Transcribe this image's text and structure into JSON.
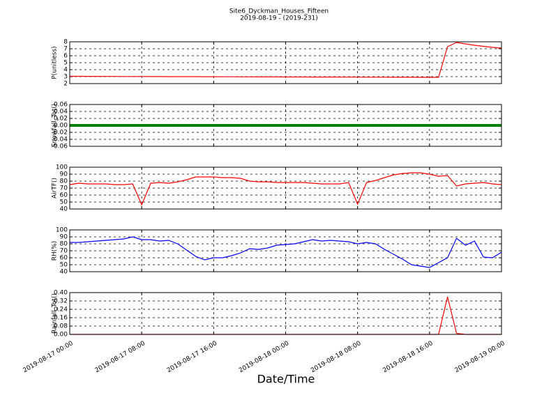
{
  "chart_data": [
    {
      "type": "line",
      "title": "Site6_Dyckman_Houses_Fifteen",
      "subtitle": "2019-08-19 - (2019-231)",
      "ylabel": "P(unitless)",
      "color": "#ff0000",
      "grid": true,
      "ylim": [
        2,
        8
      ],
      "yticks": [
        2,
        3,
        4,
        5,
        6,
        7,
        8
      ],
      "x": [
        "2019-08-17 00:00",
        "2019-08-17 01:00",
        "2019-08-17 02:00",
        "2019-08-17 03:00",
        "2019-08-17 04:00",
        "2019-08-17 05:00",
        "2019-08-17 06:00",
        "2019-08-17 07:00",
        "2019-08-17 08:00",
        "2019-08-17 09:00",
        "2019-08-17 10:00",
        "2019-08-17 11:00",
        "2019-08-17 12:00",
        "2019-08-17 13:00",
        "2019-08-17 14:00",
        "2019-08-17 15:00",
        "2019-08-17 16:00",
        "2019-08-17 17:00",
        "2019-08-17 18:00",
        "2019-08-17 19:00",
        "2019-08-17 20:00",
        "2019-08-17 21:00",
        "2019-08-17 22:00",
        "2019-08-17 23:00",
        "2019-08-18 00:00",
        "2019-08-18 01:00",
        "2019-08-18 02:00",
        "2019-08-18 03:00",
        "2019-08-18 04:00",
        "2019-08-18 05:00",
        "2019-08-18 06:00",
        "2019-08-18 07:00",
        "2019-08-18 08:00",
        "2019-08-18 09:00",
        "2019-08-18 10:00",
        "2019-08-18 11:00",
        "2019-08-18 12:00",
        "2019-08-18 13:00",
        "2019-08-18 14:00",
        "2019-08-18 15:00",
        "2019-08-18 16:00",
        "2019-08-18 17:00",
        "2019-08-18 18:00",
        "2019-08-18 19:00",
        "2019-08-18 20:00",
        "2019-08-18 21:00",
        "2019-08-18 22:00",
        "2019-08-18 23:00",
        "2019-08-19 00:00"
      ],
      "values": [
        3.05,
        3.05,
        3.04,
        3.04,
        3.03,
        3.03,
        3.02,
        3.02,
        3.02,
        3.01,
        3.01,
        3.0,
        3.0,
        3.0,
        3.0,
        2.99,
        2.99,
        2.98,
        2.98,
        2.97,
        2.97,
        2.96,
        2.96,
        2.96,
        2.95,
        2.95,
        2.95,
        2.94,
        2.94,
        2.94,
        2.93,
        2.93,
        2.93,
        2.92,
        2.92,
        2.92,
        2.91,
        2.91,
        2.91,
        2.9,
        2.9,
        2.9,
        7.3,
        7.9,
        7.7,
        7.5,
        7.35,
        7.2,
        7.1
      ]
    },
    {
      "type": "line",
      "ylabel": "Snowfall_Tot()",
      "color": "#008000",
      "grid": true,
      "ylim": [
        -0.06,
        0.06
      ],
      "yticks": [
        -0.06,
        -0.04,
        -0.02,
        {
          "value": 0,
          "label": "0.00"
        },
        0.02,
        0.04,
        0.06
      ],
      "x": [
        "2019-08-17 00:00",
        "2019-08-17 01:00",
        "2019-08-17 02:00",
        "2019-08-17 03:00",
        "2019-08-17 04:00",
        "2019-08-17 05:00",
        "2019-08-17 06:00",
        "2019-08-17 07:00",
        "2019-08-17 08:00",
        "2019-08-17 09:00",
        "2019-08-17 10:00",
        "2019-08-17 11:00",
        "2019-08-17 12:00",
        "2019-08-17 13:00",
        "2019-08-17 14:00",
        "2019-08-17 15:00",
        "2019-08-17 16:00",
        "2019-08-17 17:00",
        "2019-08-17 18:00",
        "2019-08-17 19:00",
        "2019-08-17 20:00",
        "2019-08-17 21:00",
        "2019-08-17 22:00",
        "2019-08-17 23:00",
        "2019-08-18 00:00",
        "2019-08-18 01:00",
        "2019-08-18 02:00",
        "2019-08-18 03:00",
        "2019-08-18 04:00",
        "2019-08-18 05:00",
        "2019-08-18 06:00",
        "2019-08-18 07:00",
        "2019-08-18 08:00",
        "2019-08-18 09:00",
        "2019-08-18 10:00",
        "2019-08-18 11:00",
        "2019-08-18 12:00",
        "2019-08-18 13:00",
        "2019-08-18 14:00",
        "2019-08-18 15:00",
        "2019-08-18 16:00",
        "2019-08-18 17:00",
        "2019-08-18 18:00",
        "2019-08-18 19:00",
        "2019-08-18 20:00",
        "2019-08-18 21:00",
        "2019-08-18 22:00",
        "2019-08-18 23:00",
        "2019-08-19 00:00"
      ],
      "values": [
        0,
        0,
        0,
        0,
        0,
        0,
        0,
        0,
        0,
        0,
        0,
        0,
        0,
        0,
        0,
        0,
        0,
        0,
        0,
        0,
        0,
        0,
        0,
        0,
        0,
        0,
        0,
        0,
        0,
        0,
        0,
        0,
        0,
        0,
        0,
        0,
        0,
        0,
        0,
        0,
        0,
        0,
        0,
        0,
        0,
        0,
        0,
        0,
        0
      ]
    },
    {
      "type": "line",
      "ylabel": "AirTF()",
      "color": "#ff0000",
      "grid": true,
      "ylim": [
        40,
        100
      ],
      "yticks": [
        40,
        50,
        60,
        70,
        80,
        90,
        100
      ],
      "x": [
        "2019-08-17 00:00",
        "2019-08-17 01:00",
        "2019-08-17 02:00",
        "2019-08-17 03:00",
        "2019-08-17 04:00",
        "2019-08-17 05:00",
        "2019-08-17 06:00",
        "2019-08-17 07:00",
        "2019-08-17 08:00",
        "2019-08-17 09:00",
        "2019-08-17 10:00",
        "2019-08-17 11:00",
        "2019-08-17 12:00",
        "2019-08-17 13:00",
        "2019-08-17 14:00",
        "2019-08-17 15:00",
        "2019-08-17 16:00",
        "2019-08-17 17:00",
        "2019-08-17 18:00",
        "2019-08-17 19:00",
        "2019-08-17 20:00",
        "2019-08-17 21:00",
        "2019-08-17 22:00",
        "2019-08-17 23:00",
        "2019-08-18 00:00",
        "2019-08-18 01:00",
        "2019-08-18 02:00",
        "2019-08-18 03:00",
        "2019-08-18 04:00",
        "2019-08-18 05:00",
        "2019-08-18 06:00",
        "2019-08-18 07:00",
        "2019-08-18 08:00",
        "2019-08-18 09:00",
        "2019-08-18 10:00",
        "2019-08-18 11:00",
        "2019-08-18 12:00",
        "2019-08-18 13:00",
        "2019-08-18 14:00",
        "2019-08-18 15:00",
        "2019-08-18 16:00",
        "2019-08-18 17:00",
        "2019-08-18 18:00",
        "2019-08-18 19:00",
        "2019-08-18 20:00",
        "2019-08-18 21:00",
        "2019-08-18 22:00",
        "2019-08-18 23:00",
        "2019-08-19 00:00"
      ],
      "values": [
        75,
        77,
        76,
        76,
        76,
        75,
        75,
        76,
        46,
        77,
        78,
        77,
        79,
        82,
        86,
        86,
        86,
        85,
        85,
        84,
        80,
        79,
        79,
        78,
        78,
        78,
        78,
        77,
        76,
        76,
        76,
        78,
        47,
        78,
        81,
        85,
        89,
        91,
        92,
        92,
        90,
        87,
        88,
        73,
        76,
        77,
        78,
        76,
        75
      ]
    },
    {
      "type": "line",
      "ylabel": "RH(%)",
      "color": "#0000ff",
      "grid": true,
      "ylim": [
        40,
        100
      ],
      "yticks": [
        40,
        50,
        60,
        70,
        80,
        90,
        100
      ],
      "x": [
        "2019-08-17 00:00",
        "2019-08-17 01:00",
        "2019-08-17 02:00",
        "2019-08-17 03:00",
        "2019-08-17 04:00",
        "2019-08-17 05:00",
        "2019-08-17 06:00",
        "2019-08-17 07:00",
        "2019-08-17 08:00",
        "2019-08-17 09:00",
        "2019-08-17 10:00",
        "2019-08-17 11:00",
        "2019-08-17 12:00",
        "2019-08-17 13:00",
        "2019-08-17 14:00",
        "2019-08-17 15:00",
        "2019-08-17 16:00",
        "2019-08-17 17:00",
        "2019-08-17 18:00",
        "2019-08-17 19:00",
        "2019-08-17 20:00",
        "2019-08-17 21:00",
        "2019-08-17 22:00",
        "2019-08-17 23:00",
        "2019-08-18 00:00",
        "2019-08-18 01:00",
        "2019-08-18 02:00",
        "2019-08-18 03:00",
        "2019-08-18 04:00",
        "2019-08-18 05:00",
        "2019-08-18 06:00",
        "2019-08-18 07:00",
        "2019-08-18 08:00",
        "2019-08-18 09:00",
        "2019-08-18 10:00",
        "2019-08-18 11:00",
        "2019-08-18 12:00",
        "2019-08-18 13:00",
        "2019-08-18 14:00",
        "2019-08-18 15:00",
        "2019-08-18 16:00",
        "2019-08-18 17:00",
        "2019-08-18 18:00",
        "2019-08-18 19:00",
        "2019-08-18 20:00",
        "2019-08-18 21:00",
        "2019-08-18 22:00",
        "2019-08-18 23:00",
        "2019-08-19 00:00"
      ],
      "values": [
        82,
        82,
        83,
        84,
        85,
        86,
        87,
        90,
        86,
        86,
        84,
        85,
        80,
        71,
        62,
        57,
        60,
        60,
        63,
        67,
        73,
        72,
        74,
        78,
        79,
        80,
        83,
        86,
        84,
        85,
        84,
        83,
        80,
        82,
        80,
        72,
        65,
        58,
        50,
        48,
        46,
        53,
        60,
        88,
        78,
        84,
        61,
        60,
        68
      ]
    },
    {
      "type": "line",
      "ylabel": "Rainfall_Tot()",
      "xlabel": "Date/Time",
      "color": "#ff0000",
      "grid": true,
      "ylim": [
        0,
        0.4
      ],
      "yticks": [
        {
          "value": 0,
          "label": "0.00"
        },
        0.08,
        0.16,
        0.24,
        0.32,
        {
          "value": 0.4,
          "label": "0.40"
        }
      ],
      "xlim": [
        "2019-08-17 00:00",
        "2019-08-19 00:00"
      ],
      "xticks": [
        "2019-08-17 00:00",
        "2019-08-17 08:00",
        "2019-08-17 16:00",
        "2019-08-18 00:00",
        "2019-08-18 08:00",
        "2019-08-18 16:00",
        "2019-08-19 00:00"
      ],
      "x": [
        "2019-08-17 00:00",
        "2019-08-17 01:00",
        "2019-08-17 02:00",
        "2019-08-17 03:00",
        "2019-08-17 04:00",
        "2019-08-17 05:00",
        "2019-08-17 06:00",
        "2019-08-17 07:00",
        "2019-08-17 08:00",
        "2019-08-17 09:00",
        "2019-08-17 10:00",
        "2019-08-17 11:00",
        "2019-08-17 12:00",
        "2019-08-17 13:00",
        "2019-08-17 14:00",
        "2019-08-17 15:00",
        "2019-08-17 16:00",
        "2019-08-17 17:00",
        "2019-08-17 18:00",
        "2019-08-17 19:00",
        "2019-08-17 20:00",
        "2019-08-17 21:00",
        "2019-08-17 22:00",
        "2019-08-17 23:00",
        "2019-08-18 00:00",
        "2019-08-18 01:00",
        "2019-08-18 02:00",
        "2019-08-18 03:00",
        "2019-08-18 04:00",
        "2019-08-18 05:00",
        "2019-08-18 06:00",
        "2019-08-18 07:00",
        "2019-08-18 08:00",
        "2019-08-18 09:00",
        "2019-08-18 10:00",
        "2019-08-18 11:00",
        "2019-08-18 12:00",
        "2019-08-18 13:00",
        "2019-08-18 14:00",
        "2019-08-18 15:00",
        "2019-08-18 16:00",
        "2019-08-18 17:00",
        "2019-08-18 18:00",
        "2019-08-18 19:00",
        "2019-08-18 20:00",
        "2019-08-18 21:00",
        "2019-08-18 22:00",
        "2019-08-18 23:00",
        "2019-08-19 00:00"
      ],
      "values": [
        0,
        0,
        0,
        0,
        0,
        0,
        0,
        0,
        0,
        0,
        0,
        0,
        0,
        0,
        0,
        0,
        0,
        0,
        0,
        0,
        0,
        0,
        0,
        0,
        0,
        0,
        0,
        0,
        0,
        0,
        0,
        0,
        0,
        0,
        0,
        0,
        0,
        0,
        0,
        0,
        0,
        0,
        0.36,
        0.01,
        0,
        0,
        0,
        0,
        0
      ]
    }
  ]
}
